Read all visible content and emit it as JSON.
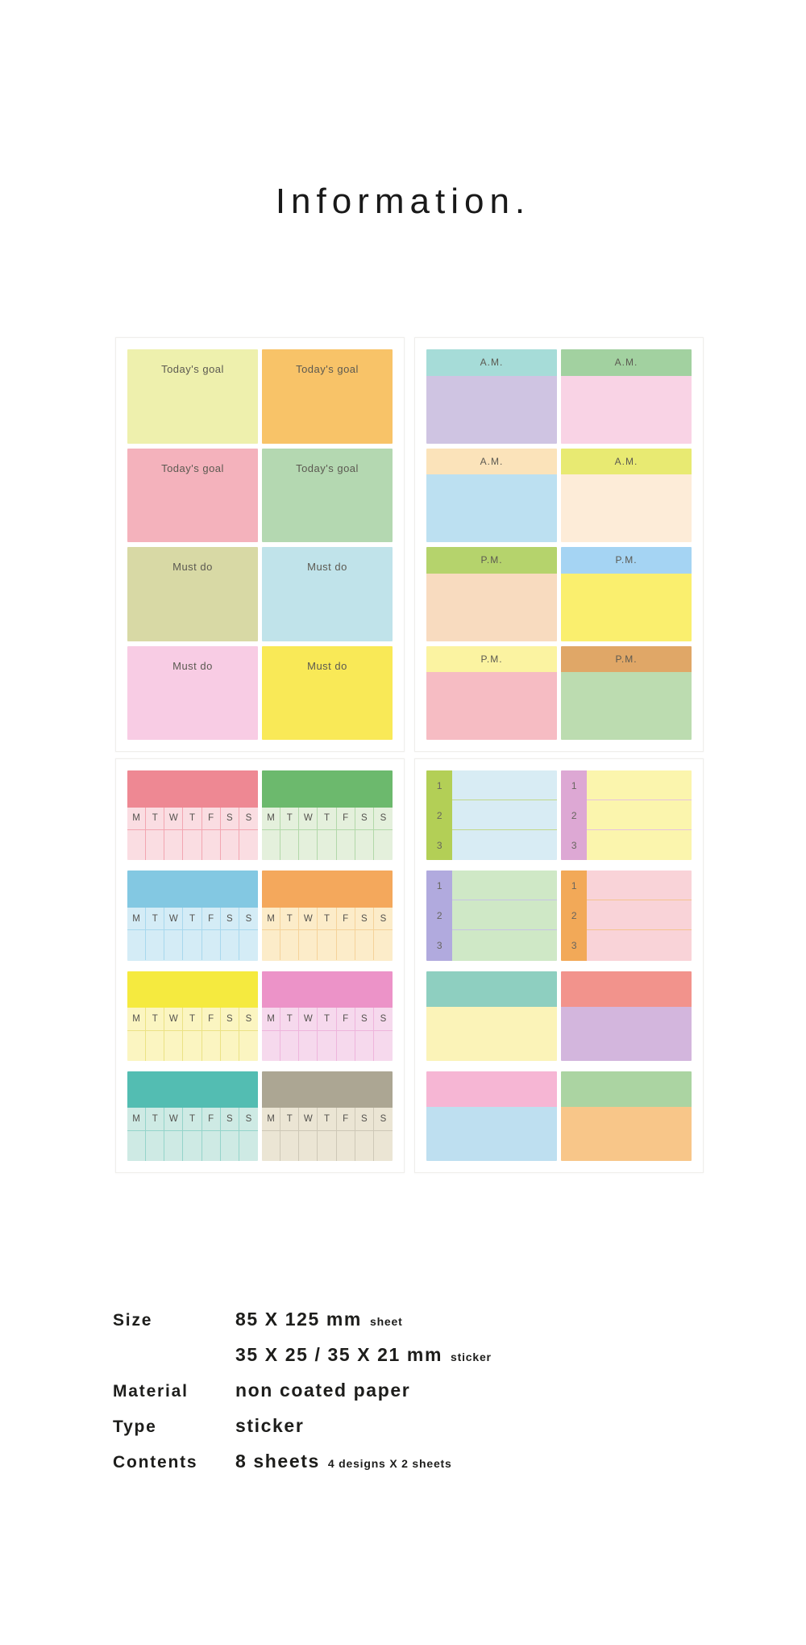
{
  "title": "Information.",
  "colors": {
    "page_bg": "#ffffff",
    "card_border": "#efeeeb",
    "heading_text": "#191919",
    "sticker_text": "#5b5951",
    "spec_text": "#1d1d1b"
  },
  "sheets": {
    "goal_must": {
      "stickers": [
        {
          "label": "Today's goal",
          "bg": "#eef0ad"
        },
        {
          "label": "Today's goal",
          "bg": "#f8c368"
        },
        {
          "label": "Today's goal",
          "bg": "#f4b2bc"
        },
        {
          "label": "Today's goal",
          "bg": "#b4d8b1"
        },
        {
          "label": "Must do",
          "bg": "#d8d9a5"
        },
        {
          "label": "Must do",
          "bg": "#c0e3ea"
        },
        {
          "label": "Must do",
          "bg": "#f8cce4"
        },
        {
          "label": "Must do",
          "bg": "#f9e957"
        }
      ]
    },
    "am_pm": {
      "stickers": [
        {
          "label": "A.M.",
          "header": "#a6dcd8",
          "body": "#cfc4e2"
        },
        {
          "label": "A.M.",
          "header": "#a2d1a0",
          "body": "#f9d3e5"
        },
        {
          "label": "A.M.",
          "header": "#fbe3ba",
          "body": "#bce0f1"
        },
        {
          "label": "A.M.",
          "header": "#e8ea72",
          "body": "#fdecd8"
        },
        {
          "label": "P.M.",
          "header": "#b5d36c",
          "body": "#f8dbbf"
        },
        {
          "label": "P.M.",
          "header": "#a5d4f3",
          "body": "#faef6e"
        },
        {
          "label": "P.M.",
          "header": "#fbf3a1",
          "body": "#f6bcc3"
        },
        {
          "label": "P.M.",
          "header": "#e0a767",
          "body": "#bcdcb0"
        }
      ]
    },
    "weekly": {
      "days": [
        "M",
        "T",
        "W",
        "T",
        "F",
        "S",
        "S"
      ],
      "stickers": [
        {
          "header": "#ee8893",
          "body": "#fadde2",
          "line": "#f2a6b1"
        },
        {
          "header": "#6cb96d",
          "body": "#e4f0dc",
          "line": "#b2d8a9"
        },
        {
          "header": "#83c8e2",
          "body": "#d4ecf6",
          "line": "#a8d8ed"
        },
        {
          "header": "#f4a85c",
          "body": "#fcecc9",
          "line": "#f5d29a"
        },
        {
          "header": "#f5ea3f",
          "body": "#fbf5c1",
          "line": "#ebe285"
        },
        {
          "header": "#ec93c8",
          "body": "#f6d9ed",
          "line": "#eeb5dc"
        },
        {
          "header": "#53bdb2",
          "body": "#ceeae4",
          "line": "#95d4ca"
        },
        {
          "header": "#aca693",
          "body": "#ebe5d4",
          "line": "#cec8b7"
        }
      ]
    },
    "numbered_blocks": {
      "numbers": [
        "1",
        "2",
        "3"
      ],
      "numbered_stickers": [
        {
          "sidebar": "#b3cf56",
          "body": "#d8ecf4",
          "line": "#c2d889"
        },
        {
          "sidebar": "#dda8d4",
          "body": "#fbf5ad",
          "line": "#e6c2df"
        },
        {
          "sidebar": "#b1aade",
          "body": "#cfe8c6",
          "line": "#c7c2e5"
        },
        {
          "sidebar": "#f2a958",
          "body": "#f9d3d8",
          "line": "#f5c38f"
        }
      ],
      "block_stickers": [
        {
          "top": "#8ecfc0",
          "bottom": "#fbf3b8"
        },
        {
          "top": "#f2938c",
          "bottom": "#d3b6dd"
        },
        {
          "top": "#f6b6d4",
          "bottom": "#bedff0"
        },
        {
          "top": "#abd4a2",
          "bottom": "#f8c689"
        }
      ]
    }
  },
  "specs": {
    "rows": [
      {
        "label": "Size",
        "value": "85 X 125 mm",
        "note": "sheet"
      },
      {
        "label": "",
        "value": "35 X 25 / 35 X 21 mm",
        "note": "sticker"
      },
      {
        "label": "Material",
        "value": "non coated paper",
        "note": ""
      },
      {
        "label": "Type",
        "value": "sticker",
        "note": ""
      },
      {
        "label": "Contents",
        "value": "8 sheets",
        "note": "4 designs X 2 sheets"
      }
    ]
  }
}
